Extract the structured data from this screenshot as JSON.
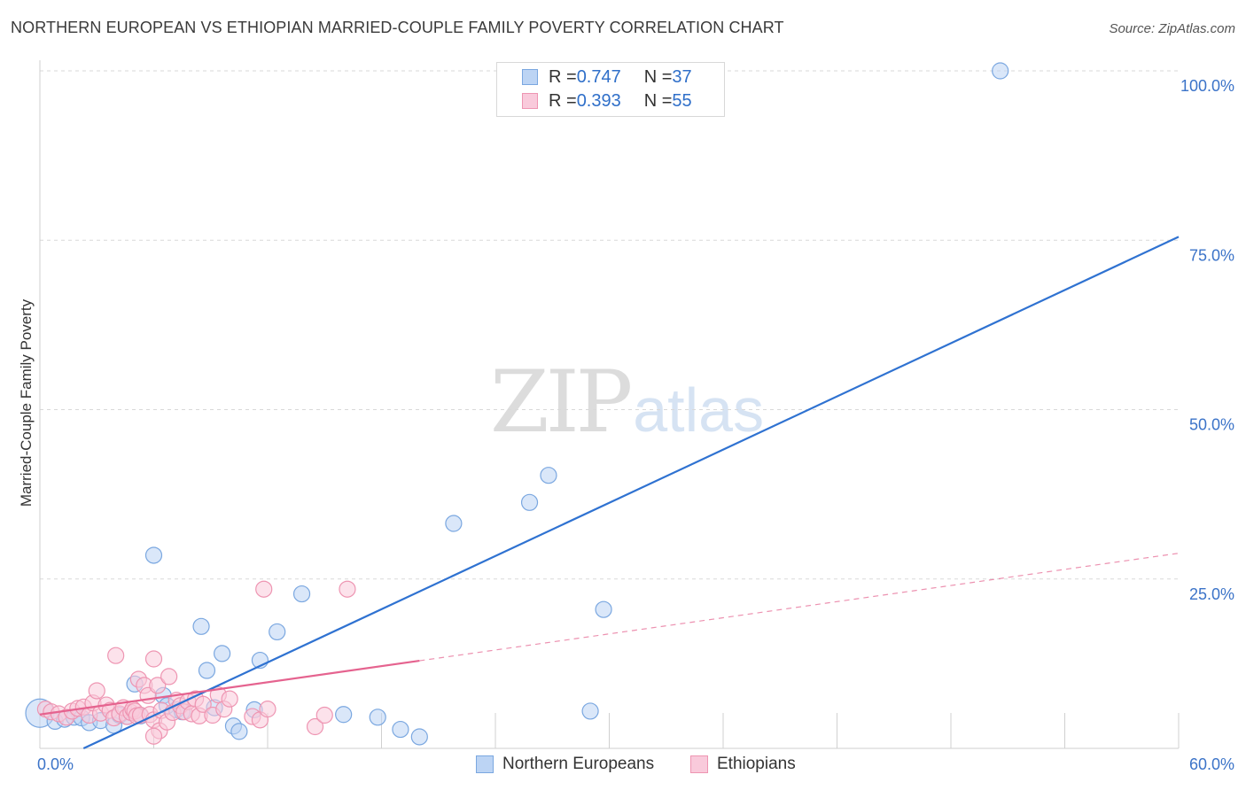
{
  "header": {
    "title": "NORTHERN EUROPEAN VS ETHIOPIAN MARRIED-COUPLE FAMILY POVERTY CORRELATION CHART",
    "source": "Source: ZipAtlas.com"
  },
  "watermark": {
    "zip": "ZIP",
    "atlas": "atlas"
  },
  "legend": {
    "rows": [
      {
        "r_label": "R = ",
        "r_value": "0.747",
        "n_label": "N = ",
        "n_value": "37",
        "color": "#7aa7e0",
        "fill": "#bcd4f4"
      },
      {
        "r_label": "R = ",
        "r_value": "0.393",
        "n_label": "N = ",
        "n_value": "55",
        "color": "#ee95b2",
        "fill": "#f9cadb"
      }
    ]
  },
  "bottom_legend": {
    "items": [
      {
        "label": "Northern Europeans",
        "color": "#7aa7e0",
        "fill": "#bcd4f4"
      },
      {
        "label": "Ethiopians",
        "color": "#ee95b2",
        "fill": "#f9cadb"
      }
    ]
  },
  "chart_data": {
    "type": "scatter",
    "title": "NORTHERN EUROPEAN VS ETHIOPIAN MARRIED-COUPLE FAMILY POVERTY CORRELATION CHART",
    "xlabel": "",
    "ylabel": "Married-Couple Family Poverty",
    "xlim": [
      0,
      60
    ],
    "ylim": [
      0,
      100
    ],
    "x_tick_labels": [
      {
        "value": 0,
        "label": "0.0%"
      },
      {
        "value": 60,
        "label": "60.0%"
      }
    ],
    "y_tick_labels": [
      {
        "value": 25,
        "label": "25.0%"
      },
      {
        "value": 50,
        "label": "50.0%"
      },
      {
        "value": 75,
        "label": "75.0%"
      },
      {
        "value": 100,
        "label": "100.0%"
      }
    ],
    "x_minor_ticks": [
      0,
      6,
      12,
      18,
      24,
      30,
      36,
      42,
      48,
      54,
      60
    ],
    "series": [
      {
        "name": "Northern Europeans",
        "stroke": "#7aa7e0",
        "fill": "#bcd4f4",
        "trend_color": "#2f72d1",
        "trend": {
          "x0": 2.3,
          "y0": 0,
          "x1": 60,
          "y1": 75.5,
          "solid_until": 60
        },
        "points": [
          [
            0.0,
            5.2,
            16
          ],
          [
            0.8,
            4.0,
            9
          ],
          [
            1.3,
            4.3,
            9
          ],
          [
            1.8,
            4.6,
            9
          ],
          [
            2.2,
            4.5,
            9
          ],
          [
            2.6,
            3.8,
            9
          ],
          [
            3.2,
            4.1,
            9
          ],
          [
            3.9,
            3.4,
            9
          ],
          [
            4.2,
            4.9,
            9
          ],
          [
            4.6,
            4.7,
            9
          ],
          [
            5.0,
            9.5,
            9
          ],
          [
            5.3,
            4.8,
            9
          ],
          [
            6.0,
            28.5,
            9
          ],
          [
            6.5,
            7.8,
            9
          ],
          [
            6.7,
            6.3,
            9
          ],
          [
            7.2,
            5.7,
            9
          ],
          [
            7.5,
            5.4,
            9
          ],
          [
            8.5,
            18.0,
            9
          ],
          [
            8.8,
            11.5,
            9
          ],
          [
            9.2,
            6.0,
            9
          ],
          [
            9.6,
            14.0,
            9
          ],
          [
            10.2,
            3.3,
            9
          ],
          [
            10.5,
            2.5,
            9
          ],
          [
            11.3,
            5.7,
            9
          ],
          [
            11.6,
            13.0,
            9
          ],
          [
            12.5,
            17.2,
            9
          ],
          [
            13.8,
            22.8,
            9
          ],
          [
            16.0,
            5.0,
            9
          ],
          [
            17.8,
            4.6,
            9
          ],
          [
            19.0,
            2.8,
            9
          ],
          [
            20.0,
            1.7,
            9
          ],
          [
            21.8,
            33.2,
            9
          ],
          [
            25.8,
            36.3,
            9
          ],
          [
            26.8,
            40.3,
            9
          ],
          [
            29.0,
            5.5,
            9
          ],
          [
            29.7,
            20.5,
            9
          ],
          [
            50.6,
            100.0,
            9
          ]
        ]
      },
      {
        "name": "Ethiopians",
        "stroke": "#ee95b2",
        "fill": "#f9cadb",
        "trend_color": "#e5638f",
        "trend": {
          "x0": 0,
          "y0": 5.0,
          "x1": 60,
          "y1": 28.8,
          "solid_until": 20
        },
        "points": [
          [
            0.3,
            5.8,
            9
          ],
          [
            0.6,
            5.4,
            9
          ],
          [
            1.0,
            5.1,
            9
          ],
          [
            1.4,
            4.6,
            9
          ],
          [
            1.7,
            5.5,
            9
          ],
          [
            2.0,
            5.9,
            9
          ],
          [
            2.3,
            6.1,
            9
          ],
          [
            2.6,
            4.9,
            9
          ],
          [
            2.8,
            6.7,
            9
          ],
          [
            3.0,
            8.5,
            9
          ],
          [
            3.2,
            5.2,
            9
          ],
          [
            3.5,
            6.4,
            9
          ],
          [
            3.7,
            5.6,
            9
          ],
          [
            3.9,
            4.5,
            9
          ],
          [
            4.0,
            13.7,
            9
          ],
          [
            4.2,
            5.1,
            9
          ],
          [
            4.4,
            6.0,
            9
          ],
          [
            4.6,
            4.7,
            9
          ],
          [
            4.8,
            5.3,
            9
          ],
          [
            4.9,
            5.8,
            9
          ],
          [
            5.0,
            5.5,
            9
          ],
          [
            5.1,
            4.8,
            9
          ],
          [
            5.2,
            10.2,
            9
          ],
          [
            5.3,
            4.9,
            9
          ],
          [
            5.5,
            9.3,
            9
          ],
          [
            5.7,
            7.8,
            9
          ],
          [
            5.8,
            5.0,
            9
          ],
          [
            6.0,
            4.2,
            9
          ],
          [
            6.0,
            13.2,
            9
          ],
          [
            6.2,
            9.3,
            9
          ],
          [
            6.3,
            2.6,
            9
          ],
          [
            6.4,
            5.6,
            9
          ],
          [
            6.7,
            3.9,
            9
          ],
          [
            6.8,
            10.6,
            9
          ],
          [
            7.0,
            5.3,
            9
          ],
          [
            7.2,
            7.1,
            9
          ],
          [
            7.4,
            6.3,
            9
          ],
          [
            7.6,
            5.4,
            9
          ],
          [
            7.8,
            6.9,
            9
          ],
          [
            8.0,
            5.1,
            9
          ],
          [
            8.2,
            7.3,
            9
          ],
          [
            8.4,
            4.8,
            9
          ],
          [
            8.6,
            6.5,
            9
          ],
          [
            9.1,
            4.9,
            9
          ],
          [
            9.4,
            7.9,
            9
          ],
          [
            9.7,
            5.8,
            9
          ],
          [
            10.0,
            7.3,
            9
          ],
          [
            11.2,
            4.7,
            9
          ],
          [
            11.6,
            4.2,
            9
          ],
          [
            11.8,
            23.5,
            9
          ],
          [
            12.0,
            5.8,
            9
          ],
          [
            14.5,
            3.2,
            9
          ],
          [
            15.0,
            4.9,
            9
          ],
          [
            16.2,
            23.5,
            9
          ],
          [
            6.0,
            1.8,
            9
          ]
        ]
      }
    ]
  }
}
